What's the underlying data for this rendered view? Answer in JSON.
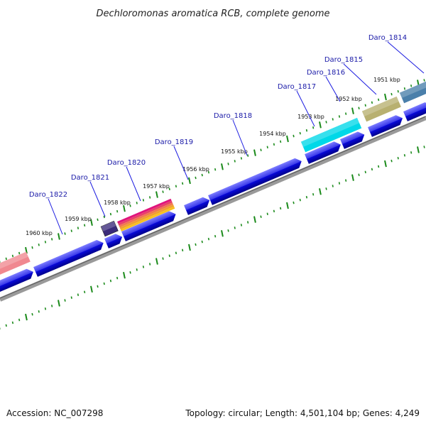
{
  "title": "Dechloromonas aromatica RCB, complete genome",
  "footer": {
    "accession": "Accession: NC_007298",
    "summary": "Topology: circular; Length: 4,501,104 bp; Genes: 4,249"
  },
  "genes": [
    {
      "id": "Daro_1814",
      "color": "#4a7faa"
    },
    {
      "id": "Daro_1815",
      "color": "#b8b070"
    },
    {
      "id": "Daro_1816",
      "color": "#00d8e8"
    },
    {
      "id": "Daro_1817",
      "color": "#00d8e8"
    },
    {
      "id": "Daro_1818",
      "color": "#0a0ae0"
    },
    {
      "id": "Daro_1819",
      "color": "#0a0ae0"
    },
    {
      "id": "Daro_1820",
      "color": "#e0147c"
    },
    {
      "id": "Daro_1821",
      "color": "#3a2a7a"
    },
    {
      "id": "Daro_1822",
      "color": "#f08890"
    }
  ],
  "kbp_ticks": [
    "1951 kbp",
    "1952 kbp",
    "1953 kbp",
    "1954 kbp",
    "1955 kbp",
    "1956 kbp",
    "1957 kbp",
    "1958 kbp",
    "1959 kbp",
    "1960 kbp"
  ],
  "colors": {
    "strand_gene": "#0a0ae0",
    "backbone": "#888888",
    "ruler_dots": "#1a8a1a",
    "label_line": "#1a1ae0"
  }
}
